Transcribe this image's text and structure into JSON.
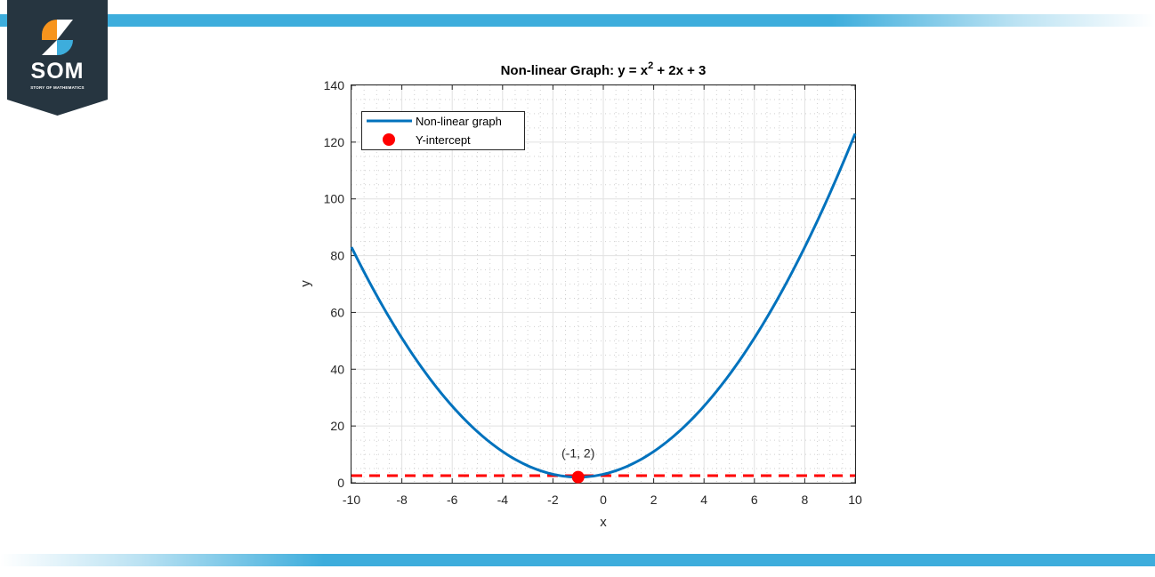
{
  "brand": {
    "logo_text": "SOM",
    "logo_subtitle": "STORY OF MATHEMATICS",
    "colors": {
      "badge": "#263540",
      "orange": "#f7941d",
      "blue": "#3daddc",
      "stripe": "#3daddc"
    }
  },
  "chart": {
    "title_prefix": "Non-linear Graph: y = x",
    "title_sup": "2",
    "title_suffix": " + 2x + 3",
    "xlabel": "x",
    "ylabel": "y",
    "xticks": [
      "-10",
      "-8",
      "-6",
      "-4",
      "-2",
      "0",
      "2",
      "4",
      "6",
      "8",
      "10"
    ],
    "yticks": [
      "0",
      "20",
      "40",
      "60",
      "80",
      "100",
      "120",
      "140"
    ],
    "legend": [
      {
        "label": "Non-linear graph"
      },
      {
        "label": "Y-intercept"
      }
    ],
    "annotation": "(-1, 2)"
  },
  "chart_data": {
    "type": "line",
    "title": "Non-linear Graph: y = x^2 + 2x + 3",
    "xlabel": "x",
    "ylabel": "y",
    "xlim": [
      -10,
      10
    ],
    "ylim": [
      0,
      140
    ],
    "grid": "major + minor (dotted)",
    "legend_position": "upper left",
    "series": [
      {
        "name": "Non-linear graph",
        "type": "line",
        "color": "#0072bd",
        "x": [
          -10,
          -8,
          -6,
          -4,
          -2,
          -1,
          0,
          2,
          4,
          6,
          8,
          10
        ],
        "y": [
          83,
          51,
          27,
          11,
          3,
          2,
          3,
          11,
          27,
          51,
          83,
          123
        ]
      },
      {
        "name": "Y-intercept",
        "type": "scatter",
        "color": "#ff0000",
        "x": [
          -1
        ],
        "y": [
          2
        ]
      },
      {
        "name": "horizontal reference",
        "type": "line",
        "style": "dashed",
        "color": "#ff0000",
        "x": [
          -10,
          10
        ],
        "y": [
          2,
          2
        ]
      }
    ],
    "annotations": [
      {
        "text": "(-1, 2)",
        "x": -1,
        "y": 2
      }
    ]
  }
}
